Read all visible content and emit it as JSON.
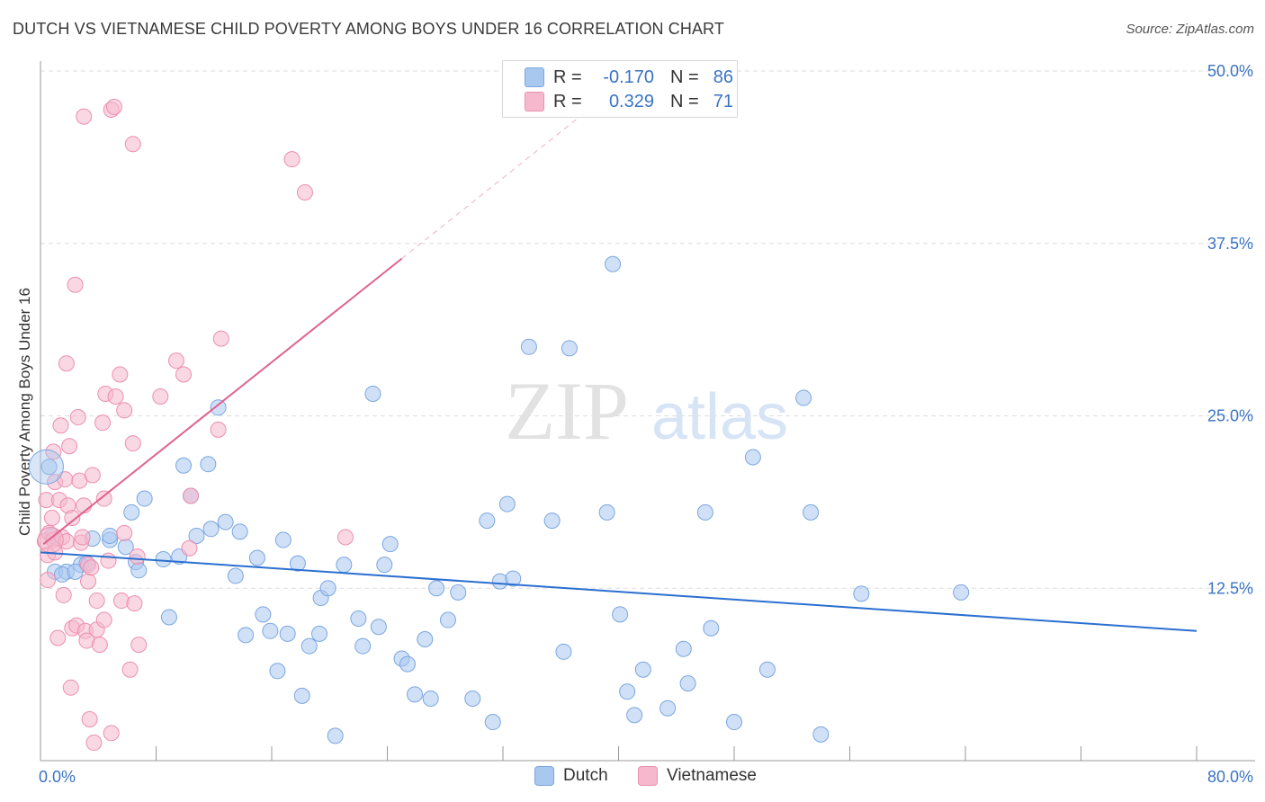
{
  "title": "DUTCH VS VIETNAMESE CHILD POVERTY AMONG BOYS UNDER 16 CORRELATION CHART",
  "source": "Source: ZipAtlas.com",
  "watermark": {
    "zip": "ZIP",
    "atlas": "atlas"
  },
  "colors": {
    "dutch_fill": "#a9c8f0",
    "dutch_stroke": "#7aa6e0",
    "dutch_line": "#2b6fd0",
    "viet_fill": "#f5b8cc",
    "viet_stroke": "#ec8fae",
    "viet_line": "#e0628f",
    "axis_text": "#3a73c4",
    "grid": "#dddddd"
  },
  "legend_top": [
    {
      "label": "R =",
      "r": "-0.170",
      "n_label": "N =",
      "n": "86",
      "color": "#a9c8f0"
    },
    {
      "label": "R =",
      "r": "0.329",
      "n_label": "N =",
      "n": "71",
      "color": "#f5b8cc"
    }
  ],
  "legend_bottom": [
    {
      "label": "Dutch",
      "color": "#a9c8f0"
    },
    {
      "label": "Vietnamese",
      "color": "#f5b8cc"
    }
  ],
  "chart_data": {
    "type": "scatter",
    "title": "DUTCH VS VIETNAMESE CHILD POVERTY AMONG BOYS UNDER 16 CORRELATION CHART",
    "xlabel": "",
    "ylabel": "Child Poverty Among Boys Under 16",
    "xlim": [
      0,
      80
    ],
    "ylim": [
      0,
      50
    ],
    "x_tick_labels": [
      {
        "value": 0,
        "label": "0.0%"
      },
      {
        "value": 80,
        "label": "80.0%"
      }
    ],
    "y_tick_labels": [
      {
        "value": 12.5,
        "label": "12.5%"
      },
      {
        "value": 25,
        "label": "25.0%"
      },
      {
        "value": 37.5,
        "label": "37.5%"
      },
      {
        "value": 50,
        "label": "50.0%"
      }
    ],
    "x_minor_ticks": [
      0,
      8,
      16,
      24,
      32,
      40,
      48,
      56,
      64,
      72,
      80
    ],
    "series": [
      {
        "name": "Dutch",
        "R": -0.17,
        "N": 86,
        "trend": {
          "x": [
            0,
            80
          ],
          "y": [
            15.1,
            9.4
          ]
        },
        "points": [
          [
            0.6,
            21.3
          ],
          [
            0.8,
            16.3
          ],
          [
            1.0,
            13.7
          ],
          [
            1.8,
            13.7
          ],
          [
            2.8,
            14.2
          ],
          [
            3.2,
            14.3
          ],
          [
            3.6,
            16.1
          ],
          [
            4.8,
            16.0
          ],
          [
            4.8,
            16.3
          ],
          [
            5.9,
            15.5
          ],
          [
            6.3,
            18.0
          ],
          [
            6.6,
            14.4
          ],
          [
            6.8,
            13.8
          ],
          [
            7.2,
            19.0
          ],
          [
            8.5,
            14.6
          ],
          [
            8.9,
            10.4
          ],
          [
            9.6,
            14.8
          ],
          [
            9.9,
            21.4
          ],
          [
            10.4,
            19.2
          ],
          [
            10.8,
            16.3
          ],
          [
            11.6,
            21.5
          ],
          [
            11.8,
            16.8
          ],
          [
            12.3,
            25.6
          ],
          [
            12.8,
            17.3
          ],
          [
            13.5,
            13.4
          ],
          [
            13.8,
            16.6
          ],
          [
            14.2,
            9.1
          ],
          [
            15.0,
            14.7
          ],
          [
            15.4,
            10.6
          ],
          [
            15.9,
            9.4
          ],
          [
            16.8,
            16.0
          ],
          [
            16.4,
            6.5
          ],
          [
            17.1,
            9.2
          ],
          [
            17.8,
            14.3
          ],
          [
            18.1,
            4.7
          ],
          [
            18.6,
            8.3
          ],
          [
            19.3,
            9.2
          ],
          [
            19.4,
            11.8
          ],
          [
            19.9,
            12.5
          ],
          [
            20.4,
            1.8
          ],
          [
            21.0,
            14.2
          ],
          [
            22.0,
            10.3
          ],
          [
            22.3,
            8.3
          ],
          [
            23.0,
            26.6
          ],
          [
            23.4,
            9.7
          ],
          [
            23.8,
            14.2
          ],
          [
            24.2,
            15.7
          ],
          [
            25.0,
            7.4
          ],
          [
            25.4,
            7.0
          ],
          [
            25.9,
            4.8
          ],
          [
            26.6,
            8.8
          ],
          [
            27.0,
            4.5
          ],
          [
            27.4,
            12.5
          ],
          [
            28.2,
            10.2
          ],
          [
            28.9,
            12.2
          ],
          [
            29.9,
            4.5
          ],
          [
            30.9,
            17.4
          ],
          [
            31.3,
            2.8
          ],
          [
            31.8,
            13.0
          ],
          [
            32.3,
            18.6
          ],
          [
            32.7,
            13.2
          ],
          [
            33.8,
            30.0
          ],
          [
            35.4,
            17.4
          ],
          [
            36.2,
            7.9
          ],
          [
            36.6,
            29.9
          ],
          [
            39.2,
            18.0
          ],
          [
            39.6,
            36.0
          ],
          [
            40.1,
            10.6
          ],
          [
            40.6,
            5.0
          ],
          [
            41.1,
            3.3
          ],
          [
            41.7,
            6.6
          ],
          [
            43.4,
            3.8
          ],
          [
            44.5,
            8.1
          ],
          [
            44.8,
            5.6
          ],
          [
            46.0,
            18.0
          ],
          [
            46.4,
            9.6
          ],
          [
            48.0,
            2.8
          ],
          [
            49.3,
            22.0
          ],
          [
            50.3,
            6.6
          ],
          [
            52.8,
            26.3
          ],
          [
            53.3,
            18.0
          ],
          [
            54.0,
            1.9
          ],
          [
            56.8,
            12.1
          ],
          [
            63.7,
            12.2
          ],
          [
            1.5,
            13.5
          ],
          [
            2.4,
            13.7
          ]
        ]
      },
      {
        "name": "Vietnamese",
        "R": 0.329,
        "N": 71,
        "trend": {
          "x": [
            0.2,
            25
          ],
          "y": [
            15.7,
            36.4
          ]
        },
        "trend_dashed": {
          "x": [
            25,
            42
          ],
          "y": [
            36.4,
            50.6
          ]
        },
        "points": [
          [
            0.3,
            15.9
          ],
          [
            0.4,
            18.9
          ],
          [
            0.5,
            14.9
          ],
          [
            0.5,
            13.1
          ],
          [
            0.6,
            16.5
          ],
          [
            0.8,
            17.6
          ],
          [
            0.9,
            22.4
          ],
          [
            0.9,
            16.0
          ],
          [
            1.0,
            15.1
          ],
          [
            1.0,
            20.2
          ],
          [
            1.2,
            8.9
          ],
          [
            1.3,
            18.9
          ],
          [
            1.4,
            24.3
          ],
          [
            1.5,
            16.2
          ],
          [
            1.6,
            12.0
          ],
          [
            1.7,
            20.4
          ],
          [
            1.8,
            28.8
          ],
          [
            1.8,
            15.9
          ],
          [
            1.9,
            18.5
          ],
          [
            2.0,
            22.8
          ],
          [
            2.1,
            5.3
          ],
          [
            2.2,
            9.6
          ],
          [
            2.2,
            17.6
          ],
          [
            2.4,
            34.5
          ],
          [
            2.5,
            9.8
          ],
          [
            2.6,
            24.9
          ],
          [
            2.7,
            20.3
          ],
          [
            2.8,
            15.8
          ],
          [
            2.9,
            16.2
          ],
          [
            3.0,
            18.5
          ],
          [
            3.0,
            46.7
          ],
          [
            3.1,
            9.4
          ],
          [
            3.2,
            8.7
          ],
          [
            3.3,
            14.2
          ],
          [
            3.3,
            13.0
          ],
          [
            3.4,
            3.0
          ],
          [
            3.5,
            14.0
          ],
          [
            3.6,
            20.7
          ],
          [
            3.7,
            1.3
          ],
          [
            3.9,
            9.5
          ],
          [
            3.9,
            11.6
          ],
          [
            4.1,
            8.4
          ],
          [
            4.3,
            24.5
          ],
          [
            4.4,
            19.0
          ],
          [
            4.4,
            10.2
          ],
          [
            4.5,
            26.6
          ],
          [
            4.7,
            14.5
          ],
          [
            4.9,
            2.0
          ],
          [
            4.9,
            47.2
          ],
          [
            5.1,
            47.4
          ],
          [
            5.2,
            26.4
          ],
          [
            5.5,
            28.0
          ],
          [
            5.6,
            11.6
          ],
          [
            5.8,
            25.4
          ],
          [
            5.8,
            16.5
          ],
          [
            6.2,
            6.6
          ],
          [
            6.4,
            23.0
          ],
          [
            6.4,
            44.7
          ],
          [
            6.5,
            11.4
          ],
          [
            6.7,
            14.8
          ],
          [
            6.8,
            8.4
          ],
          [
            8.3,
            26.4
          ],
          [
            9.4,
            29.0
          ],
          [
            9.9,
            28.0
          ],
          [
            10.3,
            15.4
          ],
          [
            10.4,
            19.2
          ],
          [
            12.3,
            24.0
          ],
          [
            12.5,
            30.6
          ],
          [
            17.4,
            43.6
          ],
          [
            18.3,
            41.2
          ],
          [
            21.1,
            16.2
          ]
        ]
      }
    ]
  }
}
